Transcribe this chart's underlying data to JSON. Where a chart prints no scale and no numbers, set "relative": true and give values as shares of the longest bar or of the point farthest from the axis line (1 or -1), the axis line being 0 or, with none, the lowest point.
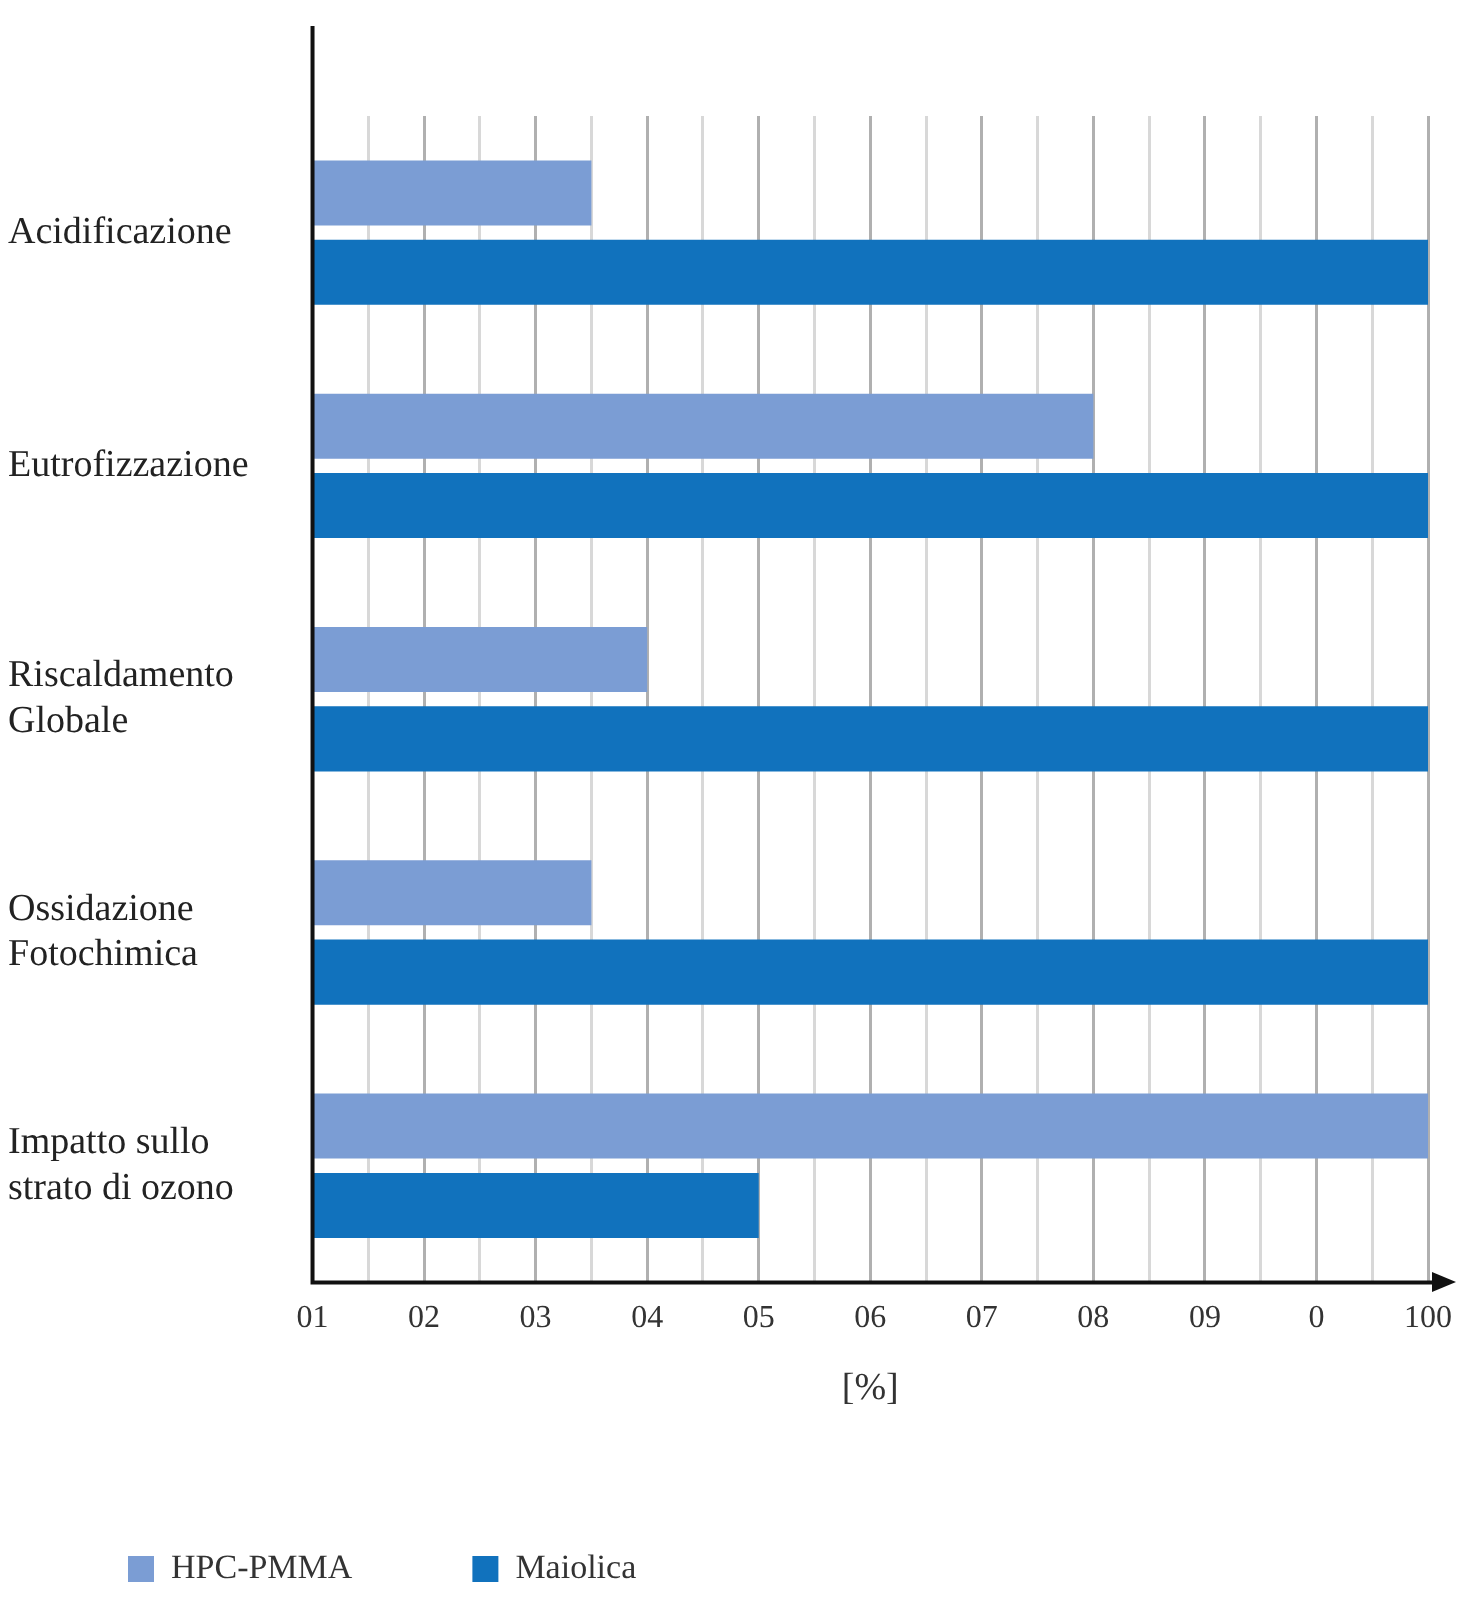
{
  "chart_data": {
    "type": "bar",
    "orientation": "horizontal",
    "xlabel": "[%]",
    "relative": true,
    "categories": [
      "Acidificazione",
      "Eutrofizzazione",
      "Riscaldamento Globale",
      "Ossidazione Fotochimica",
      "Impatto sullo strato di ozono"
    ],
    "series": [
      {
        "name": "HPC-PMMA",
        "color": "#7b9dd4",
        "values": [
          0.25,
          0.7,
          0.3,
          0.25,
          1
        ]
      },
      {
        "name": "Maiolica",
        "color": "#1172bd",
        "values": [
          1,
          1,
          1,
          1,
          0.4
        ]
      }
    ],
    "annotations": [
      "01",
      "02",
      "03",
      "04",
      "05",
      "06",
      "07",
      "08",
      "09",
      "0",
      "100"
    ],
    "grid": "x",
    "legend": "bottom left"
  }
}
